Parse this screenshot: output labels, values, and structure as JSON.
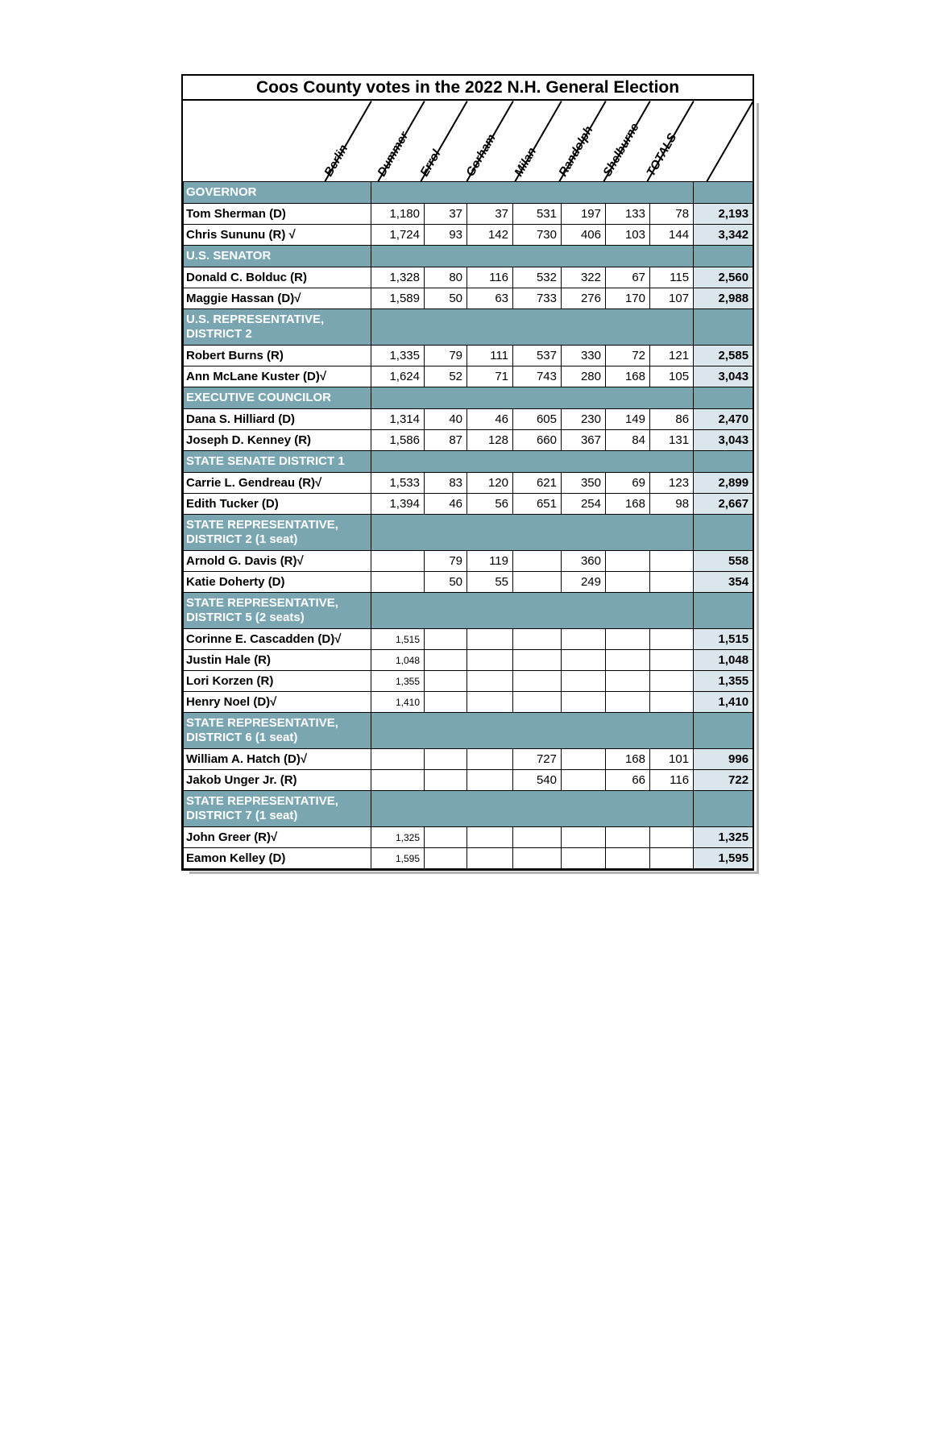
{
  "title": "Coos County votes in the 2022 N.H. General Election",
  "columns": [
    "Berlin",
    "Dummer",
    "Errol",
    "Gorham",
    "Milan",
    "Randolph",
    "Shelburne",
    "TOTALS"
  ],
  "colors": {
    "section_band": "#7aa6b2",
    "band_text": "#ffffff",
    "totals_cell_bg": "#dbe6ec",
    "grid_border": "#000000",
    "shadow": "#b2b2b2"
  },
  "checkmark_glyph": "√",
  "sections": [
    {
      "header": "GOVERNOR",
      "two_line": false,
      "rows": [
        {
          "name": "Tom Sherman (D)",
          "values": [
            "1,180",
            "37",
            "37",
            "531",
            "197",
            "133",
            "78"
          ],
          "total": "2,193",
          "small": false
        },
        {
          "name": "Chris Sununu (R) √",
          "values": [
            "1,724",
            "93",
            "142",
            "730",
            "406",
            "103",
            "144"
          ],
          "total": "3,342",
          "small": false
        }
      ]
    },
    {
      "header": "U.S. SENATOR",
      "two_line": false,
      "rows": [
        {
          "name": "Donald C. Bolduc (R)",
          "values": [
            "1,328",
            "80",
            "116",
            "532",
            "322",
            "67",
            "115"
          ],
          "total": "2,560",
          "small": false
        },
        {
          "name": "Maggie Hassan (D)√",
          "values": [
            "1,589",
            "50",
            "63",
            "733",
            "276",
            "170",
            "107"
          ],
          "total": "2,988",
          "small": false
        }
      ]
    },
    {
      "header": "U.S. REPRESENTATIVE, DISTRICT 2",
      "two_line": true,
      "rows": [
        {
          "name": "Robert Burns (R)",
          "values": [
            "1,335",
            "79",
            "111",
            "537",
            "330",
            "72",
            "121"
          ],
          "total": "2,585",
          "small": false
        },
        {
          "name": "Ann McLane Kuster (D)√",
          "values": [
            "1,624",
            "52",
            "71",
            "743",
            "280",
            "168",
            "105"
          ],
          "total": "3,043",
          "small": false
        }
      ]
    },
    {
      "header": "EXECUTIVE COUNCILOR",
      "two_line": false,
      "rows": [
        {
          "name": "Dana S. Hilliard (D)",
          "values": [
            "1,314",
            "40",
            "46",
            "605",
            "230",
            "149",
            "86"
          ],
          "total": "2,470",
          "small": false
        },
        {
          "name": "Joseph D. Kenney (R)",
          "values": [
            "1,586",
            "87",
            "128",
            "660",
            "367",
            "84",
            "131"
          ],
          "total": "3,043",
          "small": false
        }
      ]
    },
    {
      "header": "STATE SENATE DISTRICT 1",
      "two_line": false,
      "rows": [
        {
          "name": "Carrie L. Gendreau (R)√",
          "values": [
            "1,533",
            "83",
            "120",
            "621",
            "350",
            "69",
            "123"
          ],
          "total": "2,899",
          "small": false
        },
        {
          "name": "Edith Tucker (D)",
          "values": [
            "1,394",
            "46",
            "56",
            "651",
            "254",
            "168",
            "98"
          ],
          "total": "2,667",
          "small": false
        }
      ]
    },
    {
      "header": "STATE REPRESENTATIVE, DISTRICT 2 (1 seat)",
      "two_line": true,
      "rows": [
        {
          "name": "Arnold G. Davis (R)√",
          "values": [
            "",
            "79",
            "119",
            "",
            "360",
            "",
            ""
          ],
          "total": "558",
          "small": false
        },
        {
          "name": "Katie Doherty (D)",
          "values": [
            "",
            "50",
            "55",
            "",
            "249",
            "",
            ""
          ],
          "total": "354",
          "small": false
        }
      ]
    },
    {
      "header": "STATE REPRESENTATIVE, DISTRICT 5 (2 seats)",
      "two_line": true,
      "rows": [
        {
          "name": "Corinne E. Cascadden (D)√",
          "values": [
            "1,515",
            "",
            "",
            "",
            "",
            "",
            ""
          ],
          "total": "1,515",
          "small": true
        },
        {
          "name": "Justin Hale (R)",
          "values": [
            "1,048",
            "",
            "",
            "",
            "",
            "",
            ""
          ],
          "total": "1,048",
          "small": true
        },
        {
          "name": "Lori Korzen (R)",
          "values": [
            "1,355",
            "",
            "",
            "",
            "",
            "",
            ""
          ],
          "total": "1,355",
          "small": true
        },
        {
          "name": "Henry Noel (D)√",
          "values": [
            "1,410",
            "",
            "",
            "",
            "",
            "",
            ""
          ],
          "total": "1,410",
          "small": true
        }
      ]
    },
    {
      "header": "STATE REPRESENTATIVE, DISTRICT 6 (1 seat)",
      "two_line": true,
      "rows": [
        {
          "name": "William A. Hatch (D)√",
          "values": [
            "",
            "",
            "",
            "727",
            "",
            "168",
            "101"
          ],
          "total": "996",
          "small": false
        },
        {
          "name": "Jakob Unger Jr. (R)",
          "values": [
            "",
            "",
            "",
            "540",
            "",
            "66",
            "116"
          ],
          "total": "722",
          "small": false
        }
      ]
    },
    {
      "header": "STATE REPRESENTATIVE, DISTRICT 7 (1 seat)",
      "two_line": true,
      "rows": [
        {
          "name": "John Greer (R)√",
          "values": [
            "1,325",
            "",
            "",
            "",
            "",
            "",
            ""
          ],
          "total": "1,325",
          "small": true
        },
        {
          "name": "Eamon Kelley (D)",
          "values": [
            "1,595",
            "",
            "",
            "",
            "",
            "",
            ""
          ],
          "total": "1,595",
          "small": true
        }
      ]
    }
  ]
}
